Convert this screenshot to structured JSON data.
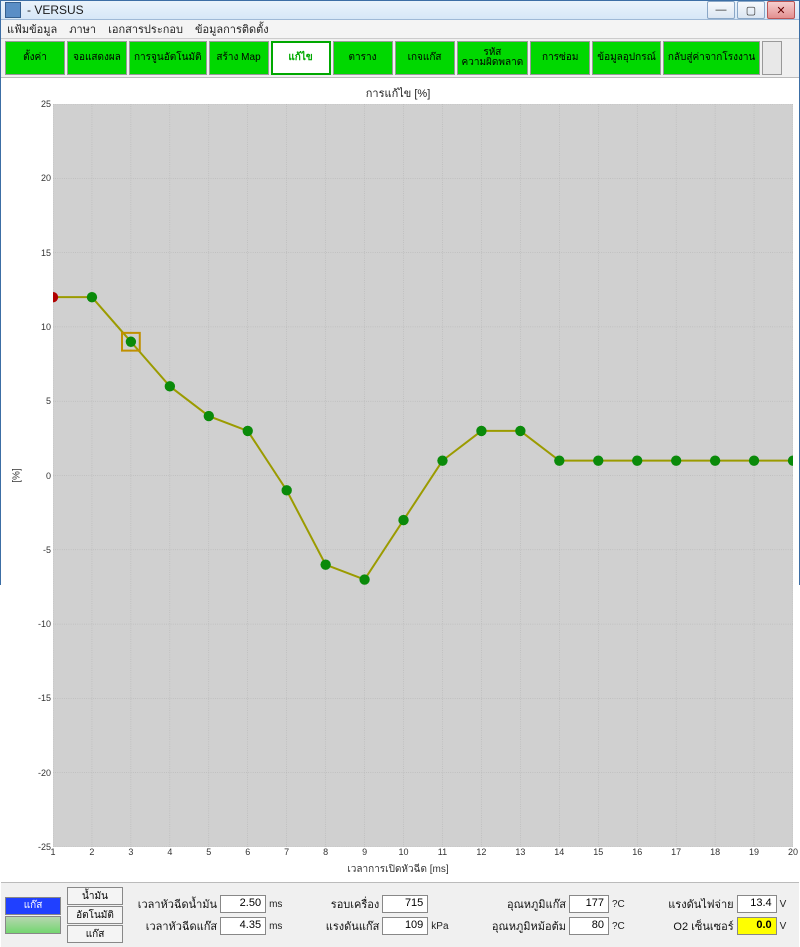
{
  "window": {
    "title": "- VERSUS"
  },
  "menu": [
    "แฟ้มข้อมูล",
    "ภาษา",
    "เอกสารประกอบ",
    "ข้อมูลการติดตั้ง"
  ],
  "tabs": [
    "ตั้งค่า",
    "จอแสดงผล",
    "การจูนอัตโนมัติ",
    "สร้าง Map",
    "แก้ไข",
    "ตาราง",
    "เกจแก๊ส",
    "รหัส\nความผิดพลาด",
    "การซ่อม",
    "ข้อมูลอุปกรณ์",
    "กลับสู่ค่าจากโรงงาน"
  ],
  "active_tab_index": 4,
  "chart": {
    "title": "การแก้ไข [%]",
    "ylabel": "[%]",
    "xlabel": "เวลาการเปิดหัวฉีด [ms]",
    "ylim": [
      -25,
      25
    ],
    "ytick_step": 5,
    "xlim": [
      1,
      20
    ],
    "xtick_step": 1,
    "background": "#d0d0d0",
    "grid_color": "#999999",
    "line_color": "#9b9b00",
    "point_color": "#0a8a0a",
    "start_point_color": "#b00000",
    "highlight_color": "#c09000",
    "x": [
      1,
      2,
      3,
      4,
      5,
      6,
      7,
      8,
      9,
      10,
      11,
      12,
      13,
      14,
      15,
      16,
      17,
      18,
      19,
      20
    ],
    "y": [
      12,
      12,
      9,
      6,
      4,
      3,
      -1,
      -6,
      -7,
      -3,
      1,
      3,
      3,
      1,
      1,
      1,
      1,
      1,
      1,
      1
    ],
    "highlight_index": 2
  },
  "mode_buttons": {
    "gas": "แก๊ส",
    "petrol": "น้ำมัน",
    "auto": "อัตโนมัติ",
    "gas2": "แก๊ส"
  },
  "readouts": {
    "inj_petrol_label": "เวลาหัวฉีดน้ำมัน",
    "inj_petrol_val": "2.50",
    "inj_petrol_unit": "ms",
    "rpm_label": "รอบเครื่อง",
    "rpm_val": "715",
    "gas_temp_label": "อุณหภูมิแก๊ส",
    "gas_temp_val": "177",
    "gas_temp_unit": "?C",
    "batt_label": "แรงดันไฟจ่าย",
    "batt_val": "13.4",
    "batt_unit": "V",
    "inj_gas_label": "เวลาหัวฉีดแก๊ส",
    "inj_gas_val": "4.35",
    "inj_gas_unit": "ms",
    "gas_press_label": "แรงดันแก๊ส",
    "gas_press_val": "109",
    "gas_press_unit": "kPa",
    "red_temp_label": "อุณหภูมิหม้อต้ม",
    "red_temp_val": "80",
    "red_temp_unit": "?C",
    "o2_label": "O2 เซ็นเซอร์",
    "o2_val": "0.0",
    "o2_unit": "V"
  }
}
